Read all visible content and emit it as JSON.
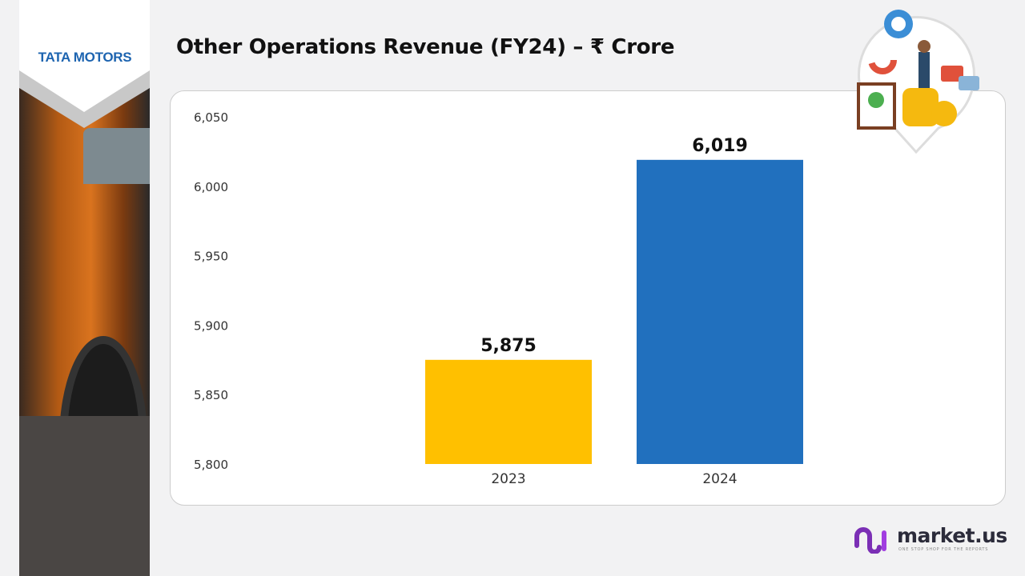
{
  "brand": {
    "logo_text": "TATA MOTORS",
    "footer_logo": "market.us",
    "footer_tagline": "ONE STOP SHOP FOR THE REPORTS"
  },
  "chart_data": {
    "type": "bar",
    "title": "Other Operations Revenue (FY24) – ₹ Crore",
    "categories": [
      "2023",
      "2024"
    ],
    "values": [
      5875,
      6019
    ],
    "data_labels": [
      "5,875",
      "6,019"
    ],
    "colors": [
      "#FFC000",
      "#2170BE"
    ],
    "ylim": [
      5800,
      6050
    ],
    "yticks": [
      "5,800",
      "5,850",
      "5,900",
      "5,950",
      "6,000",
      "6,050"
    ],
    "xlabel": "",
    "ylabel": "",
    "grid": false,
    "legend": "none"
  }
}
